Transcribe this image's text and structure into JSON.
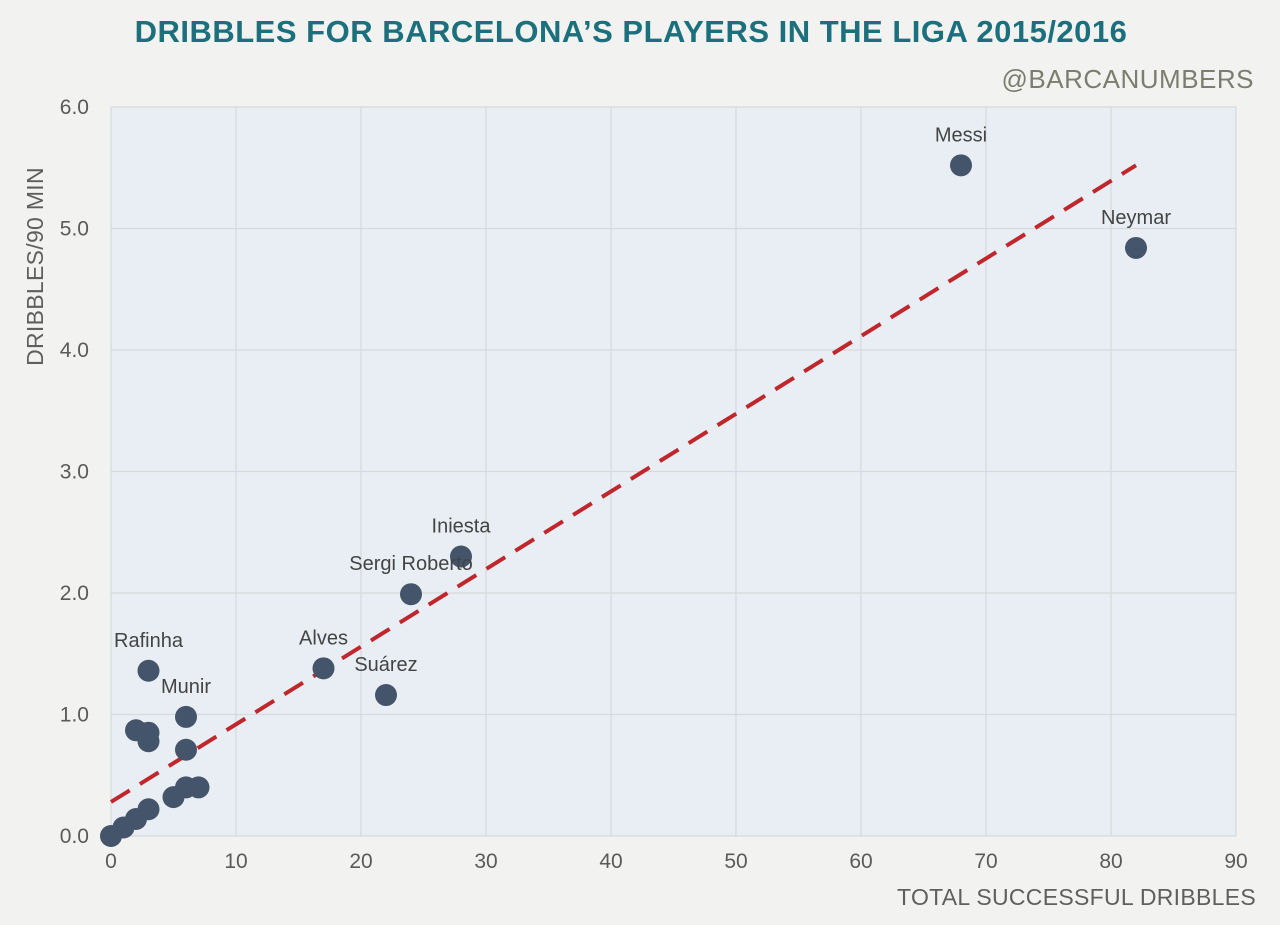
{
  "header": {
    "title": "DRIBBLES FOR BARCELONA’S PLAYERS IN THE LIGA 2015/2016",
    "credit": "@BARCANUMBERS"
  },
  "colors": {
    "plot_bg": "#e8eef3",
    "grid": "#d6d9dc",
    "point": "#44546a",
    "trend": "#c0272d",
    "title": "#1c6f7d"
  },
  "chart_data": {
    "type": "scatter",
    "title": "DRIBBLES FOR BARCELONA’S PLAYERS IN THE LIGA 2015/2016",
    "xlabel": "TOTAL SUCCESSFUL DRIBBLES",
    "ylabel": "DRIBBLES/90 MIN",
    "xlim": [
      0,
      90
    ],
    "ylim": [
      0,
      6
    ],
    "x_ticks": [
      "0",
      "10",
      "20",
      "30",
      "40",
      "50",
      "60",
      "70",
      "80",
      "90"
    ],
    "y_ticks": [
      "0.0",
      "1.0",
      "2.0",
      "3.0",
      "4.0",
      "5.0",
      "6.0"
    ],
    "grid": true,
    "points": [
      {
        "x": 68,
        "y": 5.52,
        "label": "Messi"
      },
      {
        "x": 82,
        "y": 4.84,
        "label": "Neymar"
      },
      {
        "x": 28,
        "y": 2.3,
        "label": "Iniesta"
      },
      {
        "x": 24,
        "y": 1.99,
        "label": "Sergi Roberto"
      },
      {
        "x": 17,
        "y": 1.38,
        "label": "Alves"
      },
      {
        "x": 22,
        "y": 1.16,
        "label": "Suárez"
      },
      {
        "x": 3,
        "y": 1.36,
        "label": "Rafinha"
      },
      {
        "x": 6,
        "y": 0.98,
        "label": "Munir"
      },
      {
        "x": 2,
        "y": 0.87,
        "label": ""
      },
      {
        "x": 3,
        "y": 0.85,
        "label": ""
      },
      {
        "x": 3,
        "y": 0.78,
        "label": ""
      },
      {
        "x": 6,
        "y": 0.71,
        "label": ""
      },
      {
        "x": 6,
        "y": 0.4,
        "label": ""
      },
      {
        "x": 7,
        "y": 0.4,
        "label": ""
      },
      {
        "x": 5,
        "y": 0.32,
        "label": ""
      },
      {
        "x": 3,
        "y": 0.22,
        "label": ""
      },
      {
        "x": 2,
        "y": 0.14,
        "label": ""
      },
      {
        "x": 1,
        "y": 0.07,
        "label": ""
      },
      {
        "x": 0,
        "y": 0.0,
        "label": ""
      }
    ],
    "trendline": {
      "x": [
        0,
        82
      ],
      "y": [
        0.28,
        5.52
      ]
    }
  }
}
